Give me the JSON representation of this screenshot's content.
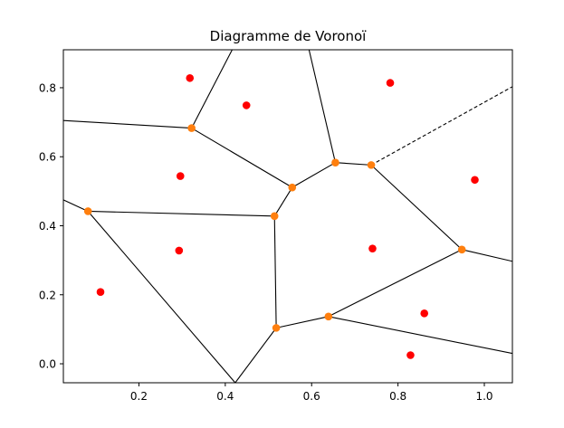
{
  "chart_data": {
    "type": "scatter",
    "title": "Diagramme de Voronoï",
    "xlabel": "",
    "ylabel": "",
    "xlim": [
      0.025,
      1.065
    ],
    "ylim": [
      -0.055,
      0.91
    ],
    "grid": false,
    "xticks": [
      {
        "value": 0.2,
        "label": "0.2"
      },
      {
        "value": 0.4,
        "label": "0.4"
      },
      {
        "value": 0.6,
        "label": "0.6"
      },
      {
        "value": 0.8,
        "label": "0.8"
      },
      {
        "value": 1.0,
        "label": "1.0"
      }
    ],
    "yticks": [
      {
        "value": 0.0,
        "label": "0.0"
      },
      {
        "value": 0.2,
        "label": "0.2"
      },
      {
        "value": 0.4,
        "label": "0.4"
      },
      {
        "value": 0.6,
        "label": "0.6"
      },
      {
        "value": 0.8,
        "label": "0.8"
      }
    ],
    "point_color": "#ff0000",
    "vertex_color": "#ff7f0e",
    "edge_color": "#000000",
    "points": [
      [
        0.318,
        0.828
      ],
      [
        0.449,
        0.749
      ],
      [
        0.782,
        0.814
      ],
      [
        0.296,
        0.544
      ],
      [
        0.978,
        0.533
      ],
      [
        0.293,
        0.328
      ],
      [
        0.741,
        0.334
      ],
      [
        0.111,
        0.208
      ],
      [
        0.861,
        0.146
      ],
      [
        0.829,
        0.025
      ]
    ],
    "vertices": [
      [
        0.322,
        0.683
      ],
      [
        0.082,
        0.442
      ],
      [
        0.555,
        0.511
      ],
      [
        0.655,
        0.583
      ],
      [
        0.738,
        0.576
      ],
      [
        0.514,
        0.428
      ],
      [
        0.948,
        0.331
      ],
      [
        0.518,
        0.104
      ],
      [
        0.639,
        0.137
      ]
    ],
    "edges": [
      {
        "from": [
          0.322,
          0.683
        ],
        "to": [
          0.025,
          0.705
        ],
        "style": "solid"
      },
      {
        "from": [
          0.322,
          0.683
        ],
        "to": [
          0.416,
          0.91
        ],
        "style": "solid"
      },
      {
        "from": [
          0.322,
          0.683
        ],
        "to": [
          0.555,
          0.511
        ],
        "style": "solid"
      },
      {
        "from": [
          0.655,
          0.583
        ],
        "to": [
          0.594,
          0.91
        ],
        "style": "solid"
      },
      {
        "from": [
          0.655,
          0.583
        ],
        "to": [
          0.555,
          0.511
        ],
        "style": "solid"
      },
      {
        "from": [
          0.655,
          0.583
        ],
        "to": [
          0.738,
          0.576
        ],
        "style": "solid"
      },
      {
        "from": [
          0.738,
          0.576
        ],
        "to": [
          1.065,
          0.803
        ],
        "style": "dashed"
      },
      {
        "from": [
          0.738,
          0.576
        ],
        "to": [
          0.948,
          0.331
        ],
        "style": "solid"
      },
      {
        "from": [
          0.555,
          0.511
        ],
        "to": [
          0.514,
          0.428
        ],
        "style": "solid"
      },
      {
        "from": [
          0.514,
          0.428
        ],
        "to": [
          0.082,
          0.442
        ],
        "style": "solid"
      },
      {
        "from": [
          0.514,
          0.428
        ],
        "to": [
          0.518,
          0.104
        ],
        "style": "solid"
      },
      {
        "from": [
          0.082,
          0.442
        ],
        "to": [
          0.025,
          0.475
        ],
        "style": "solid"
      },
      {
        "from": [
          0.082,
          0.442
        ],
        "to": [
          0.423,
          -0.055
        ],
        "style": "solid"
      },
      {
        "from": [
          0.518,
          0.104
        ],
        "to": [
          0.423,
          -0.055
        ],
        "style": "solid"
      },
      {
        "from": [
          0.518,
          0.104
        ],
        "to": [
          0.639,
          0.137
        ],
        "style": "solid"
      },
      {
        "from": [
          0.639,
          0.137
        ],
        "to": [
          0.948,
          0.331
        ],
        "style": "solid"
      },
      {
        "from": [
          0.639,
          0.137
        ],
        "to": [
          1.065,
          0.03
        ],
        "style": "solid"
      },
      {
        "from": [
          0.948,
          0.331
        ],
        "to": [
          1.065,
          0.297
        ],
        "style": "solid"
      }
    ]
  }
}
